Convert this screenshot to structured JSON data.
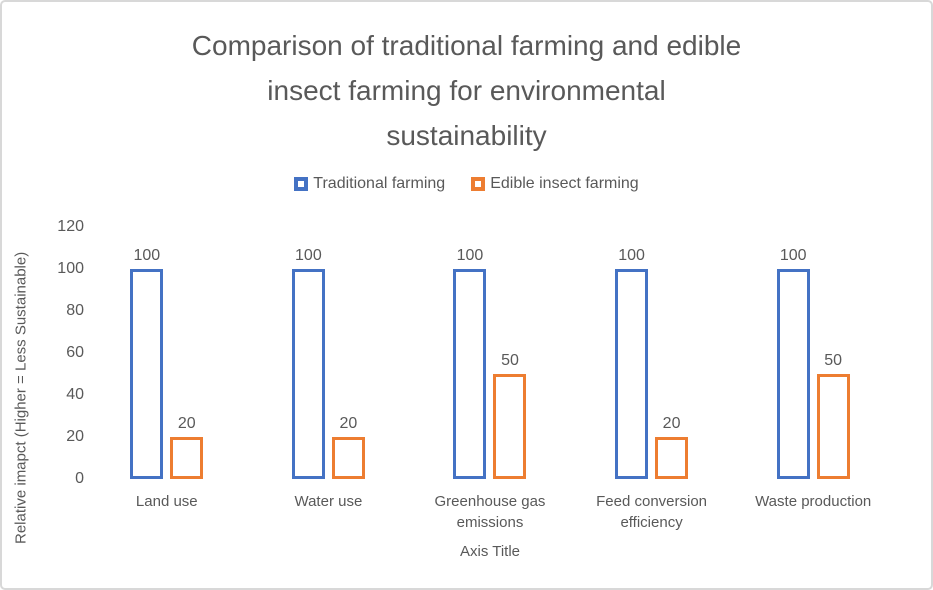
{
  "chart_data": {
    "type": "bar",
    "title": "Comparison of traditional farming and edible insect farming for environmental sustainability",
    "title_lines": [
      "Comparison of traditional farming and edible",
      "insect farming for environmental",
      "sustainability"
    ],
    "xlabel": "Axis Title",
    "ylabel": "Relative imapct (Higher = Less Sustainable)",
    "categories": [
      "Land use",
      "Water use",
      "Greenhouse gas emissions",
      "Feed conversion efficiency",
      "Waste production"
    ],
    "series": [
      {
        "name": "Traditional farming",
        "color": "#4472C4",
        "values": [
          100,
          100,
          100,
          100,
          100
        ]
      },
      {
        "name": "Edible insect farming",
        "color": "#ED7D31",
        "values": [
          20,
          20,
          50,
          20,
          50
        ]
      }
    ],
    "ylim": [
      0,
      120
    ],
    "yticks": [
      0,
      20,
      40,
      60,
      80,
      100,
      120
    ],
    "grid": false,
    "legend_position": "top",
    "bar_style": "hollow-outline",
    "data_labels": true
  },
  "colors": {
    "series_blue": "#4472C4",
    "series_orange": "#ED7D31",
    "text_gray": "#595959",
    "frame_border": "#d8d8d8",
    "background": "#ffffff"
  }
}
